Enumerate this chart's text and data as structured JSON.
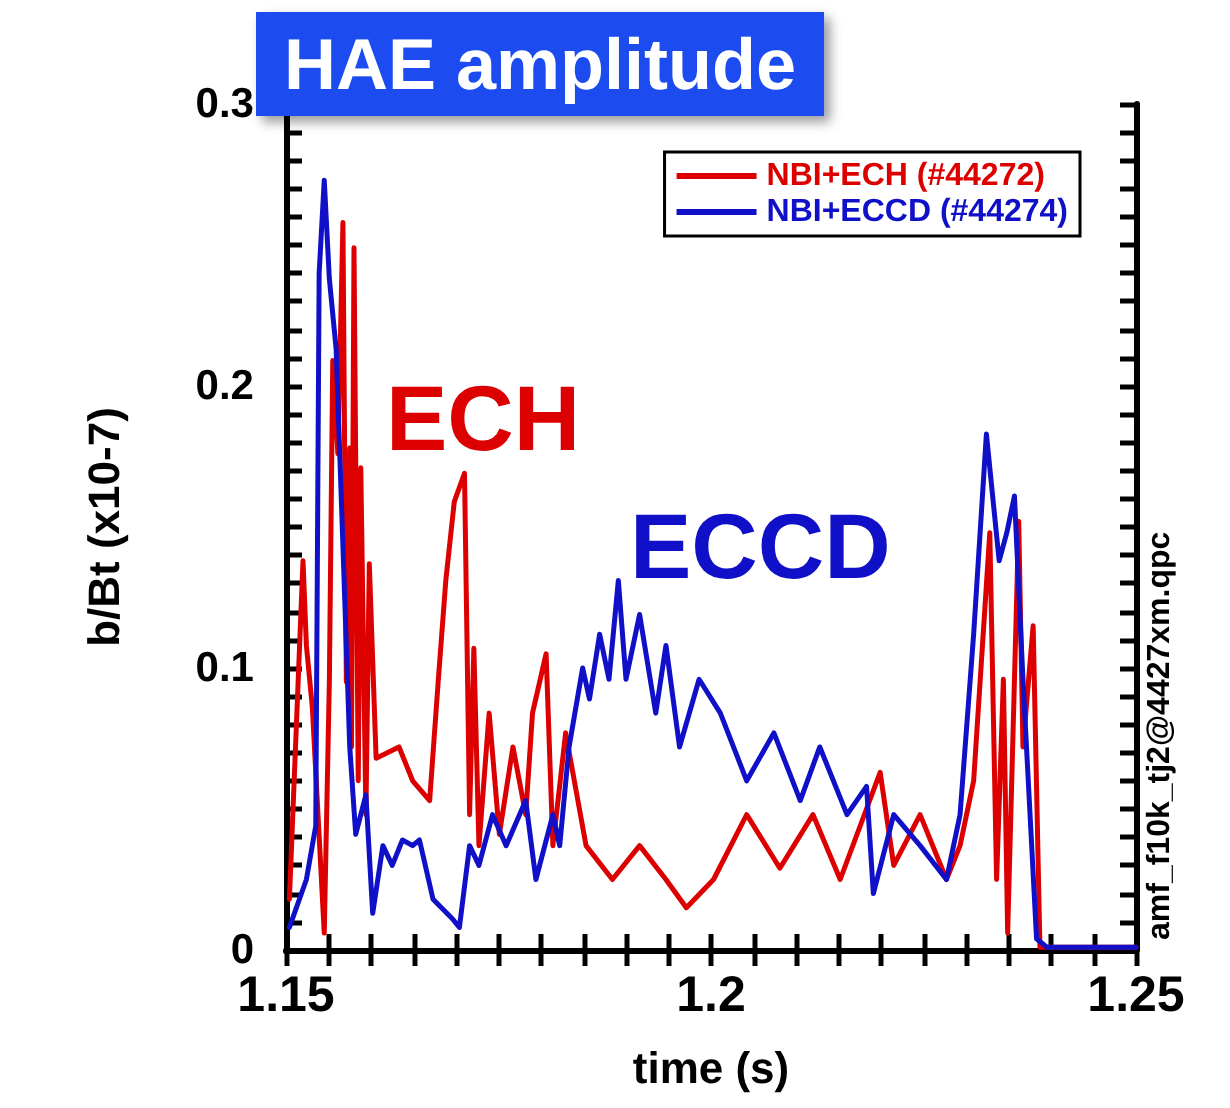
{
  "chart_data": {
    "type": "line",
    "title": "HAE amplitude",
    "xlabel": "time (s)",
    "ylabel": "b/Bt (x10-7)",
    "xlim": [
      1.15,
      1.25
    ],
    "xticks": [
      1.15,
      {
        "value": 1.155,
        "label": null
      },
      {
        "value": 1.16,
        "label": null
      },
      {
        "value": 1.165,
        "label": null
      },
      {
        "value": 1.17,
        "label": null
      },
      {
        "value": 1.175,
        "label": null
      },
      {
        "value": 1.18,
        "label": null
      },
      {
        "value": 1.185,
        "label": null
      },
      {
        "value": 1.19,
        "label": null
      },
      {
        "value": 1.195,
        "label": null
      },
      1.2,
      {
        "value": 1.205,
        "label": null
      },
      {
        "value": 1.21,
        "label": null
      },
      {
        "value": 1.215,
        "label": null
      },
      {
        "value": 1.22,
        "label": null
      },
      {
        "value": 1.225,
        "label": null
      },
      {
        "value": 1.23,
        "label": null
      },
      {
        "value": 1.235,
        "label": null
      },
      {
        "value": 1.24,
        "label": null
      },
      {
        "value": 1.245,
        "label": null
      },
      1.25
    ],
    "ylim": [
      0,
      0.3
    ],
    "yticks": [
      0,
      {
        "value": 0.01,
        "label": null
      },
      {
        "value": 0.02,
        "label": null
      },
      {
        "value": 0.03,
        "label": null
      },
      {
        "value": 0.04,
        "label": null
      },
      {
        "value": 0.05,
        "label": null
      },
      {
        "value": 0.06,
        "label": null
      },
      {
        "value": 0.07,
        "label": null
      },
      {
        "value": 0.08,
        "label": null
      },
      {
        "value": 0.09,
        "label": null
      },
      0.1,
      {
        "value": 0.11,
        "label": null
      },
      {
        "value": 0.12,
        "label": null
      },
      {
        "value": 0.13,
        "label": null
      },
      {
        "value": 0.14,
        "label": null
      },
      {
        "value": 0.15,
        "label": null
      },
      {
        "value": 0.16,
        "label": null
      },
      {
        "value": 0.17,
        "label": null
      },
      {
        "value": 0.18,
        "label": null
      },
      {
        "value": 0.19,
        "label": null
      },
      0.2,
      {
        "value": 0.21,
        "label": null
      },
      {
        "value": 0.22,
        "label": null
      },
      {
        "value": 0.23,
        "label": null
      },
      {
        "value": 0.24,
        "label": null
      },
      {
        "value": 0.25,
        "label": null
      },
      {
        "value": 0.26,
        "label": null
      },
      {
        "value": 0.27,
        "label": null
      },
      {
        "value": 0.28,
        "label": null
      },
      {
        "value": 0.29,
        "label": null
      },
      0.3
    ],
    "legend": "top right",
    "grid": false,
    "marker": "none",
    "line_style": "solid",
    "annotations": [
      "ECH",
      "ECCD",
      "amf_f10k_tj2@4427xm.qpc"
    ],
    "series": [
      {
        "name": "NBI+ECH (#44272)",
        "color": "#dd0000",
        "x": [
          1.1504,
          1.152,
          1.1524,
          1.1531,
          1.1545,
          1.1551,
          1.1555,
          1.1561,
          1.1567,
          1.1571,
          1.1575,
          1.1577,
          1.158,
          1.1585,
          1.1588,
          1.1594,
          1.1598,
          1.1606,
          1.1633,
          1.1649,
          1.1669,
          1.1679,
          1.1688,
          1.1698,
          1.171,
          1.1716,
          1.1721,
          1.1727,
          1.1739,
          1.1751,
          1.1767,
          1.1782,
          1.179,
          1.1806,
          1.1814,
          1.1829,
          1.1853,
          1.1884,
          1.1916,
          1.1947,
          1.1971,
          1.2003,
          1.2042,
          1.2081,
          1.212,
          1.2152,
          1.2199,
          1.2215,
          1.2246,
          1.2277,
          1.2293,
          1.2309,
          1.2328,
          1.2336,
          1.2344,
          1.2349,
          1.2362,
          1.2367,
          1.2379,
          1.2387,
          1.2403,
          1.25
        ],
        "values": [
          0.018,
          0.138,
          0.108,
          0.086,
          0.006,
          0.095,
          0.209,
          0.176,
          0.258,
          0.095,
          0.178,
          0.072,
          0.249,
          0.06,
          0.171,
          0.048,
          0.137,
          0.068,
          0.072,
          0.06,
          0.053,
          0.095,
          0.131,
          0.159,
          0.169,
          0.048,
          0.107,
          0.037,
          0.084,
          0.041,
          0.072,
          0.048,
          0.084,
          0.105,
          0.037,
          0.077,
          0.037,
          0.025,
          0.037,
          0.025,
          0.015,
          0.025,
          0.048,
          0.029,
          0.048,
          0.025,
          0.063,
          0.03,
          0.048,
          0.025,
          0.037,
          0.06,
          0.148,
          0.025,
          0.096,
          0.006,
          0.152,
          0.072,
          0.115,
          0.001,
          0.001,
          0.001
        ]
      },
      {
        "name": "NBI+ECCD (#44274)",
        "color": "#1010c8",
        "x": [
          1.1504,
          1.1524,
          1.1535,
          1.1539,
          1.1545,
          1.1551,
          1.1559,
          1.1567,
          1.1575,
          1.1582,
          1.1594,
          1.1602,
          1.1614,
          1.1625,
          1.1637,
          1.1649,
          1.1657,
          1.1673,
          1.1696,
          1.1704,
          1.1716,
          1.1727,
          1.1743,
          1.1759,
          1.1782,
          1.1794,
          1.1814,
          1.1822,
          1.1833,
          1.1849,
          1.1857,
          1.1869,
          1.188,
          1.1891,
          1.19,
          1.1916,
          1.1935,
          1.1947,
          1.1963,
          1.1986,
          1.2011,
          1.2042,
          1.2074,
          1.2105,
          1.2128,
          1.216,
          1.2183,
          1.2191,
          1.2215,
          1.2246,
          1.2277,
          1.2293,
          1.2309,
          1.2324,
          1.2339,
          1.2348,
          1.2357,
          1.2367,
          1.2383,
          1.2395,
          1.25
        ],
        "values": [
          0.008,
          0.025,
          0.044,
          0.24,
          0.273,
          0.238,
          0.213,
          0.143,
          0.072,
          0.041,
          0.055,
          0.013,
          0.037,
          0.03,
          0.039,
          0.037,
          0.039,
          0.018,
          0.011,
          0.008,
          0.037,
          0.03,
          0.048,
          0.037,
          0.053,
          0.025,
          0.048,
          0.037,
          0.072,
          0.1,
          0.089,
          0.112,
          0.096,
          0.131,
          0.096,
          0.119,
          0.084,
          0.108,
          0.072,
          0.096,
          0.084,
          0.06,
          0.077,
          0.053,
          0.072,
          0.048,
          0.058,
          0.02,
          0.048,
          0.037,
          0.025,
          0.048,
          0.112,
          0.183,
          0.138,
          0.148,
          0.161,
          0.096,
          0.004,
          0.001,
          0.001
        ]
      }
    ]
  }
}
